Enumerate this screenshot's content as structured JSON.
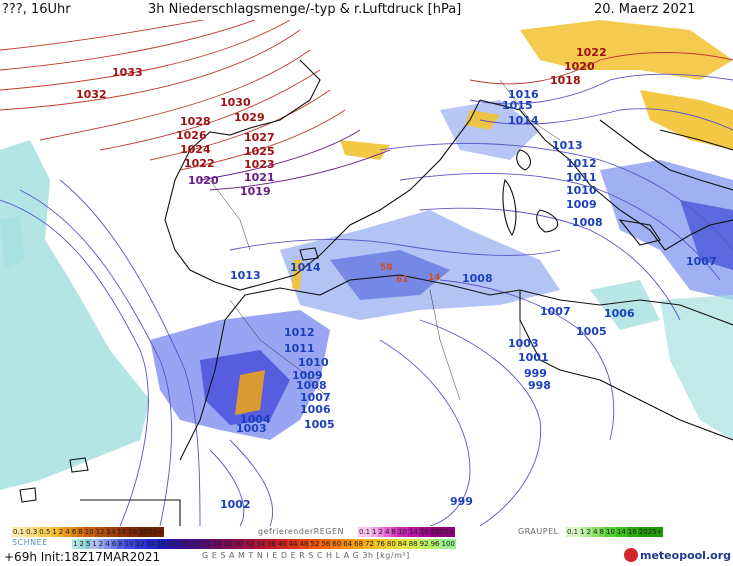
{
  "header": {
    "left": "???, 16Uhr",
    "title": "3h Niederschlagsmenge/-typ & r.Luftdruck [hPa]",
    "date": "20. Maerz 2021"
  },
  "pressure_labels": [
    {
      "text": "1033",
      "cls": "high"
    },
    {
      "text": "1032",
      "cls": "high"
    },
    {
      "text": "1030",
      "cls": "high"
    },
    {
      "text": "1029",
      "cls": "high"
    },
    {
      "text": "1028",
      "cls": "high"
    },
    {
      "text": "1027",
      "cls": "high"
    },
    {
      "text": "1026",
      "cls": "high"
    },
    {
      "text": "1025",
      "cls": "high"
    },
    {
      "text": "1024",
      "cls": "high"
    },
    {
      "text": "1023",
      "cls": "high"
    },
    {
      "text": "1022",
      "cls": "high"
    },
    {
      "text": "1021",
      "cls": "mid"
    },
    {
      "text": "1020",
      "cls": "mid"
    },
    {
      "text": "1019",
      "cls": "mid"
    },
    {
      "text": "1022",
      "cls": "high"
    },
    {
      "text": "1020",
      "cls": "high"
    },
    {
      "text": "1018",
      "cls": "high"
    },
    {
      "text": "1016",
      "cls": "low"
    },
    {
      "text": "1015",
      "cls": "low"
    },
    {
      "text": "1014",
      "cls": "low"
    },
    {
      "text": "1013",
      "cls": "low"
    },
    {
      "text": "1012",
      "cls": "low"
    },
    {
      "text": "1011",
      "cls": "low"
    },
    {
      "text": "1010",
      "cls": "low"
    },
    {
      "text": "1009",
      "cls": "low"
    },
    {
      "text": "1008",
      "cls": "low"
    },
    {
      "text": "1007",
      "cls": "low"
    },
    {
      "text": "1014",
      "cls": "low"
    },
    {
      "text": "1013",
      "cls": "low"
    },
    {
      "text": "1008",
      "cls": "low"
    },
    {
      "text": "1007",
      "cls": "low"
    },
    {
      "text": "1006",
      "cls": "low"
    },
    {
      "text": "1005",
      "cls": "low"
    },
    {
      "text": "1003",
      "cls": "low"
    },
    {
      "text": "1001",
      "cls": "low"
    },
    {
      "text": "999",
      "cls": "low"
    },
    {
      "text": "998",
      "cls": "low"
    },
    {
      "text": "1012",
      "cls": "low"
    },
    {
      "text": "1011",
      "cls": "low"
    },
    {
      "text": "1010",
      "cls": "low"
    },
    {
      "text": "1009",
      "cls": "low"
    },
    {
      "text": "1008",
      "cls": "low"
    },
    {
      "text": "1007",
      "cls": "low"
    },
    {
      "text": "1006",
      "cls": "low"
    },
    {
      "text": "1005",
      "cls": "low"
    },
    {
      "text": "1004",
      "cls": "low"
    },
    {
      "text": "1003",
      "cls": "low"
    },
    {
      "text": "1002",
      "cls": "low"
    },
    {
      "text": "999",
      "cls": "low"
    }
  ],
  "rain_labels": [
    "58",
    "61",
    "14"
  ],
  "legend": {
    "snow_label": "SCHNEE",
    "snow_values": [
      "0.1",
      "0.3",
      "0.5",
      "1",
      "2",
      "4",
      "6",
      "8",
      "10",
      "12",
      "14",
      "16",
      "18",
      "2025+"
    ],
    "frz_label": "gefrierenderREGEN",
    "frz_values": [
      "0.1",
      "1",
      "2",
      "4",
      "8",
      "10",
      "14",
      "16",
      "2025+"
    ],
    "graupel_label": "GRAUPEL",
    "graupel_values": [
      "0.1",
      "1",
      "2",
      "4",
      "8",
      "10",
      "14",
      "16",
      "2025+"
    ],
    "rain_values": [
      "1",
      "2",
      "5",
      "1",
      "2",
      "4",
      "6",
      "8",
      "10",
      "12",
      "14",
      "16",
      "18",
      "20",
      "22",
      "24",
      "26",
      "28",
      "30",
      "32",
      "34",
      "36",
      "40",
      "44",
      "48",
      "52",
      "56",
      "60",
      "64",
      "68",
      "72",
      "76",
      "80",
      "84",
      "88",
      "92",
      "96",
      "100"
    ],
    "total_label": "G E S A M T N I E D E R S C H L A G   3h   [kg/m²]",
    "footer_left": "+69h  Init:18Z17MAR2021",
    "logo_text": "meteopool.org"
  },
  "colors": {
    "isobar": "#5b52c9",
    "isobar_high": "#c0392b",
    "coast": "#111111",
    "rain_light": "#a6e0e0",
    "rain_mid": "#7f8ff0",
    "rain_heavy": "#3a3fd6",
    "snow": "#f2c230"
  }
}
